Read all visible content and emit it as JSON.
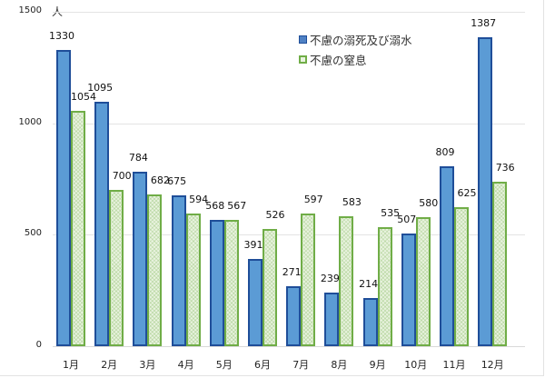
{
  "chart_data": {
    "type": "bar",
    "title": "",
    "xlabel": "",
    "ylabel": "人",
    "ylim": [
      0,
      1500
    ],
    "yticks": [
      0,
      500,
      1000,
      1500
    ],
    "grid": true,
    "legend_position": "upper-right-inside",
    "categories": [
      "1月",
      "2月",
      "3月",
      "4月",
      "5月",
      "6月",
      "7月",
      "8月",
      "9月",
      "10月",
      "11月",
      "12月"
    ],
    "series": [
      {
        "name": "不慮の溺死及び溺水",
        "color": "#5b9bd5",
        "border_color": "#1f4e99",
        "values": [
          1330,
          1095,
          784,
          675,
          568,
          391,
          271,
          239,
          214,
          507,
          809,
          1387
        ]
      },
      {
        "name": "不慮の窒息",
        "color": "#e9f3df",
        "border_color": "#70ad47",
        "values": [
          1054,
          700,
          682,
          594,
          567,
          526,
          597,
          583,
          535,
          580,
          625,
          736
        ]
      }
    ]
  },
  "axis": {
    "y_unit": "人",
    "ticks": [
      "0",
      "500",
      "1000",
      "1500"
    ]
  },
  "legend": {
    "items": [
      {
        "label": "不慮の溺死及び溺水"
      },
      {
        "label": "不慮の窒息"
      }
    ]
  }
}
